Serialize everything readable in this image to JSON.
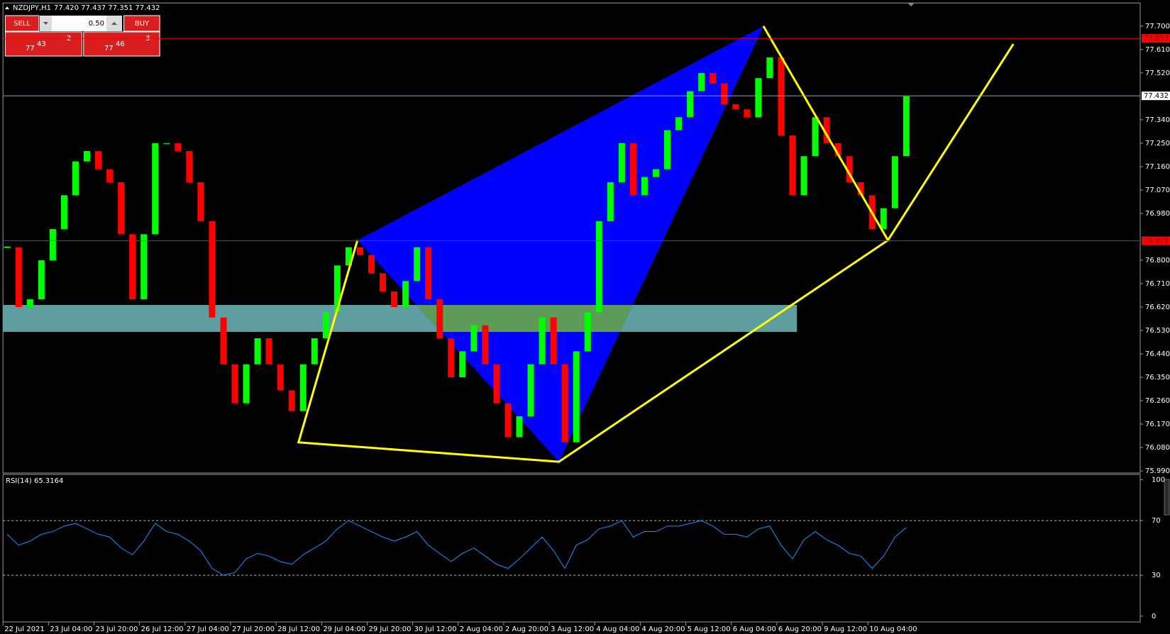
{
  "terminal": {
    "header": {
      "symbol": "NZDJPY,H1",
      "quote": "77.420 77.437 77.351 77.432"
    },
    "trade_panel": {
      "sell": "SELL",
      "buy": "BUY",
      "lot": "0.50",
      "bid": {
        "prefix": "77",
        "big": "43",
        "small": "2"
      },
      "ask": {
        "prefix": "77",
        "big": "46",
        "small": "3"
      }
    },
    "price_chart": {
      "ylim": [
        75.982,
        77.789
      ],
      "yticks": [
        {
          "value": 77.7,
          "label": "77.700"
        },
        {
          "value": 77.61,
          "label": "77.610"
        },
        {
          "value": 77.52,
          "label": "77.520"
        },
        {
          "value": 77.34,
          "label": "77.340"
        },
        {
          "value": 77.25,
          "label": "77.250"
        },
        {
          "value": 77.16,
          "label": "77.160"
        },
        {
          "value": 77.07,
          "label": "77.070"
        },
        {
          "value": 76.98,
          "label": "76.980"
        },
        {
          "value": 76.8,
          "label": "76.800"
        },
        {
          "value": 76.71,
          "label": "76.710"
        },
        {
          "value": 76.62,
          "label": "76.620"
        },
        {
          "value": 76.53,
          "label": "76.530"
        },
        {
          "value": 76.44,
          "label": "76.440"
        },
        {
          "value": 76.35,
          "label": "76.350"
        },
        {
          "value": 76.26,
          "label": "76.260"
        },
        {
          "value": 76.17,
          "label": "76.170"
        },
        {
          "value": 76.08,
          "label": "76.080"
        },
        {
          "value": 75.99,
          "label": "75.990"
        }
      ],
      "levels": [
        {
          "value": 77.653,
          "color": "#ff0000"
        },
        {
          "value": 76.875,
          "color": "#ff0000"
        },
        {
          "value": 77.432,
          "color": "#8fa3b5"
        }
      ],
      "time_labels": [
        "22 Jul 2021",
        "23 Jul 04:00",
        "23 Jul 20:00",
        "26 Jul 12:00",
        "27 Jul 04:00",
        "27 Jul 20:00",
        "28 Jul 12:00",
        "29 Jul 04:00",
        "29 Jul 20:00",
        "30 Jul 12:00",
        "2 Aug 04:00",
        "2 Aug 20:00",
        "3 Aug 12:00",
        "4 Aug 04:00",
        "4 Aug 20:00",
        "5 Aug 12:00",
        "6 Aug 04:00",
        "6 Aug 20:00",
        "9 Aug 12:00",
        "10 Aug 04:00"
      ],
      "closes": [
        76.85,
        76.62,
        76.65,
        76.8,
        76.92,
        77.05,
        77.18,
        77.22,
        77.15,
        77.1,
        76.9,
        76.65,
        76.9,
        77.25,
        77.25,
        77.22,
        77.1,
        76.95,
        76.58,
        76.4,
        76.25,
        76.4,
        76.5,
        76.4,
        76.3,
        76.22,
        76.4,
        76.5,
        76.6,
        76.78,
        76.85,
        76.82,
        76.75,
        76.68,
        76.62,
        76.72,
        76.85,
        76.65,
        76.5,
        76.35,
        76.45,
        76.55,
        76.4,
        76.25,
        76.12,
        76.2,
        76.4,
        76.58,
        76.4,
        76.1,
        76.45,
        76.6,
        76.95,
        77.1,
        77.25,
        77.05,
        77.12,
        77.15,
        77.3,
        77.35,
        77.45,
        77.52,
        77.48,
        77.4,
        77.38,
        77.35,
        77.5,
        77.58,
        77.28,
        77.05,
        77.2,
        77.35,
        77.25,
        77.2,
        77.1,
        77.05,
        76.92,
        77.0,
        77.2,
        77.43
      ]
    },
    "rsi": {
      "label": "RSI(14) 65.3164",
      "ylim": [
        0,
        100
      ],
      "yticks": [
        100,
        70,
        30,
        0
      ],
      "levels": [
        70,
        30
      ],
      "values": [
        60,
        52,
        55,
        60,
        62,
        66,
        68,
        64,
        60,
        58,
        50,
        45,
        55,
        68,
        62,
        60,
        55,
        48,
        35,
        30,
        32,
        42,
        46,
        44,
        40,
        38,
        45,
        50,
        55,
        64,
        70,
        66,
        62,
        58,
        55,
        58,
        62,
        52,
        46,
        40,
        46,
        50,
        44,
        38,
        35,
        42,
        50,
        58,
        48,
        35,
        52,
        56,
        64,
        66,
        70,
        58,
        62,
        62,
        66,
        66,
        68,
        70,
        66,
        60,
        60,
        58,
        64,
        66,
        52,
        42,
        56,
        62,
        56,
        52,
        46,
        44,
        35,
        44,
        58,
        65
      ]
    }
  }
}
